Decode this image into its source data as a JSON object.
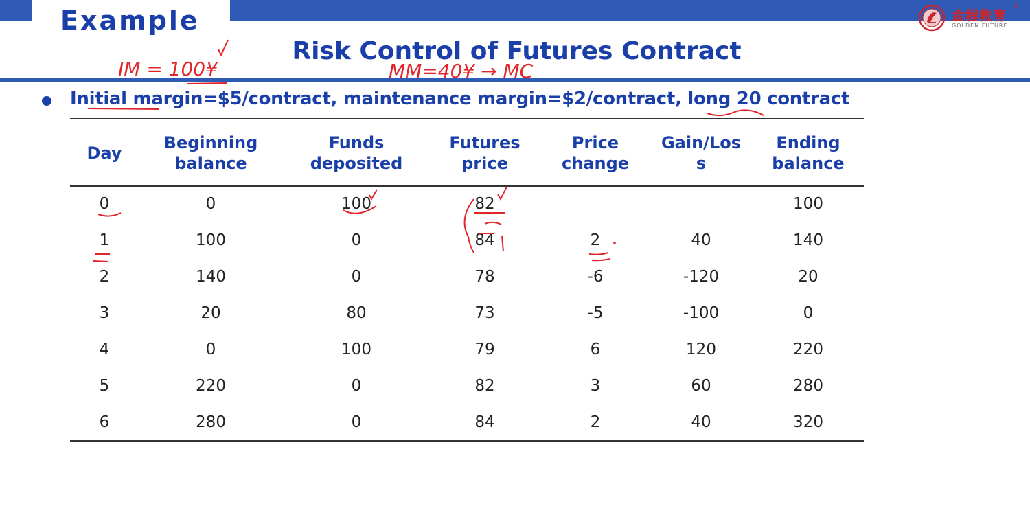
{
  "header": {
    "example_label": "Example",
    "title": "Risk Control of Futures Contract",
    "accent_color": "#2f5ab5",
    "title_color": "#1a3fa8"
  },
  "logo": {
    "name_cn": "金程教育",
    "name_en": "GOLDEN FUTURE",
    "registered": "®"
  },
  "bullet": {
    "text": "Initial margin=$5/contract, maintenance margin=$2/contract, long 20 contract"
  },
  "annotations": {
    "note_im": "IM = 100¥",
    "note_mm": "MM=40¥ → MC",
    "color": "#e0262b"
  },
  "table": {
    "headers": [
      [
        "Day"
      ],
      [
        "Beginning",
        "balance"
      ],
      [
        "Funds",
        "deposited"
      ],
      [
        "Futures",
        "price"
      ],
      [
        "Price",
        "change"
      ],
      [
        "Gain/Los",
        "s"
      ],
      [
        "Ending",
        "balance"
      ]
    ],
    "rows": [
      [
        "0",
        "0",
        "100",
        "82",
        "",
        "",
        "100"
      ],
      [
        "1",
        "100",
        "0",
        "84",
        "2",
        "40",
        "140"
      ],
      [
        "2",
        "140",
        "0",
        "78",
        "-6",
        "-120",
        "20"
      ],
      [
        "3",
        "20",
        "80",
        "73",
        "-5",
        "-100",
        "0"
      ],
      [
        "4",
        "0",
        "100",
        "79",
        "6",
        "120",
        "220"
      ],
      [
        "5",
        "220",
        "0",
        "82",
        "3",
        "60",
        "280"
      ],
      [
        "6",
        "280",
        "0",
        "84",
        "2",
        "40",
        "320"
      ]
    ]
  }
}
